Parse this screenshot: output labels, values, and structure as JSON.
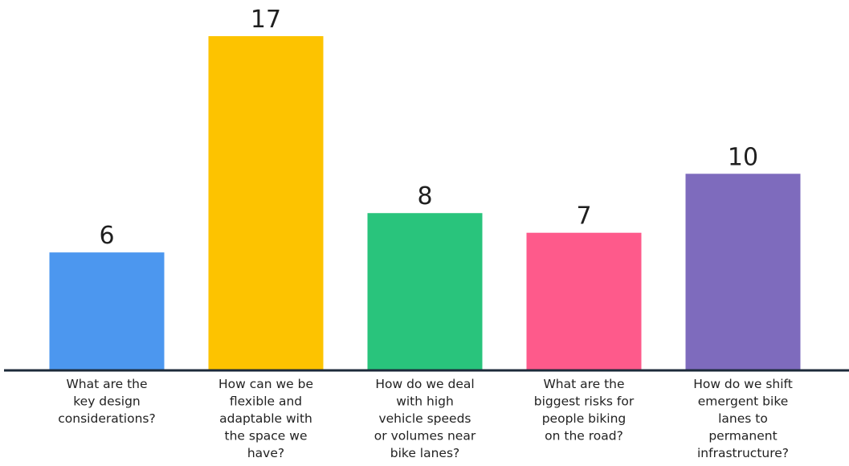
{
  "chart_data": {
    "type": "bar",
    "title": "",
    "xlabel": "",
    "ylabel": "",
    "grid": false,
    "legend": "none",
    "categories": [
      "What are the key design considerations?",
      "How can we be flexible and adaptable with the space we have?",
      "How do we deal with high vehicle speeds or volumes near bike lanes?",
      "What are the biggest risks for people biking on the road?",
      "How do we shift emergent bike lanes to permanent infrastructure?"
    ],
    "category_lines": [
      [
        "What are the",
        "key design",
        "considerations?"
      ],
      [
        "How can we be",
        "flexible and",
        "adaptable with",
        "the space we",
        "have?"
      ],
      [
        "How do we deal",
        "with high",
        "vehicle speeds",
        "or volumes near",
        "bike lanes?"
      ],
      [
        "What are the",
        "biggest risks for",
        "people biking",
        "on the road?"
      ],
      [
        "How do we shift",
        "emergent bike",
        "lanes to",
        "permanent",
        "infrastructure?"
      ]
    ],
    "values": [
      6,
      17,
      8,
      7,
      10
    ],
    "value_labels": [
      "6",
      "17",
      "8",
      "7",
      "10"
    ],
    "colors": [
      "#4c97ef",
      "#fdc300",
      "#29c47c",
      "#fe5a8b",
      "#7e6bbd"
    ],
    "baseline_color": "#1c2a3a",
    "ylim": [
      0,
      17
    ]
  }
}
